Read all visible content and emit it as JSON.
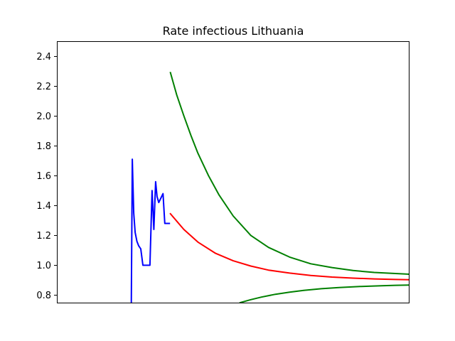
{
  "chart_data": {
    "type": "line",
    "title": "Rate infectious Lithuania",
    "xlabel": "",
    "ylabel": "",
    "xlim": [
      0,
      100
    ],
    "ylim": [
      0.75,
      2.5
    ],
    "yticks": [
      "0.8",
      "1.0",
      "1.2",
      "1.4",
      "1.6",
      "1.8",
      "2.0",
      "2.2",
      "2.4"
    ],
    "grid": false,
    "series": [
      {
        "color": "#0000ff",
        "x": [
          21.1,
          21.4,
          21.8,
          22.2,
          22.7,
          23.2,
          23.8,
          24.4,
          25.1,
          25.8,
          26.4,
          27.0,
          27.5,
          28.0,
          28.4,
          28.9,
          29.3,
          29.7,
          30.1,
          30.6,
          31.1,
          31.6,
          31.9
        ],
        "y": [
          0.75,
          1.71,
          1.35,
          1.22,
          1.16,
          1.13,
          1.11,
          1.0,
          1.0,
          1.0,
          1.0,
          1.5,
          1.24,
          1.56,
          1.46,
          1.42,
          1.44,
          1.46,
          1.48,
          1.28,
          1.28,
          1.28,
          1.28
        ]
      },
      {
        "color": "#ff0000",
        "x": [
          32.2,
          36,
          40,
          45,
          50,
          55,
          60,
          66,
          72,
          78,
          84,
          90,
          96,
          100
        ],
        "y": [
          1.345,
          1.24,
          1.155,
          1.08,
          1.03,
          0.995,
          0.968,
          0.948,
          0.932,
          0.921,
          0.914,
          0.909,
          0.905,
          0.903
        ]
      },
      {
        "color": "#008000",
        "x": [
          32.2,
          34,
          36,
          38,
          40,
          43,
          46,
          50,
          55,
          60,
          66,
          72,
          78,
          84,
          90,
          96,
          100
        ],
        "y": [
          2.29,
          2.14,
          2.0,
          1.87,
          1.75,
          1.6,
          1.47,
          1.33,
          1.2,
          1.12,
          1.055,
          1.01,
          0.985,
          0.965,
          0.952,
          0.945,
          0.94
        ]
      },
      {
        "color": "#008000",
        "x": [
          52,
          55,
          58,
          62,
          66,
          70,
          75,
          80,
          86,
          92,
          96,
          100
        ],
        "y": [
          0.75,
          0.77,
          0.787,
          0.806,
          0.82,
          0.832,
          0.843,
          0.851,
          0.858,
          0.863,
          0.866,
          0.868
        ]
      }
    ]
  }
}
